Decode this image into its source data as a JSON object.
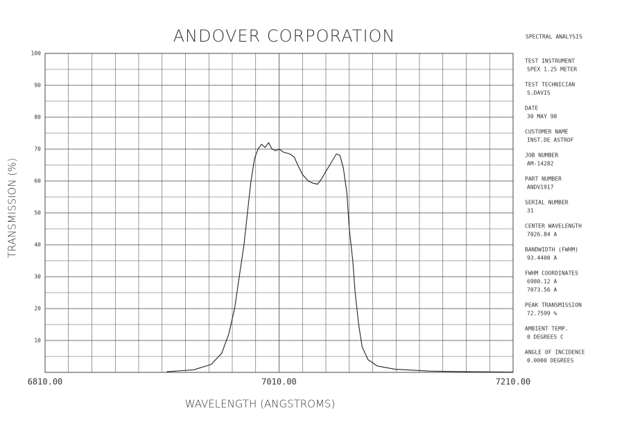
{
  "chart_data": {
    "type": "line",
    "title": "ANDOVER CORPORATION",
    "x_label": "WAVELENGTH (ANGSTROMS)",
    "y_label": "TRANSMISSION (%)",
    "x": [
      6914,
      6937,
      6952,
      6961,
      6967,
      6972,
      6976,
      6980,
      6983,
      6986,
      6989,
      6992,
      6995,
      6998,
      7001,
      7004,
      7007,
      7010,
      7014,
      7019,
      7023,
      7026,
      7030,
      7035,
      7039,
      7043,
      7046,
      7050,
      7055,
      7059,
      7062,
      7065,
      7068,
      7070,
      7073,
      7075,
      7078,
      7081,
      7086,
      7094,
      7109,
      7139,
      7174,
      7210
    ],
    "values": [
      0.2,
      0.8,
      2.5,
      6,
      12,
      20,
      30,
      40,
      50,
      60,
      67,
      70,
      71.5,
      70.5,
      72,
      70,
      69.5,
      70,
      69,
      68.5,
      67.5,
      65,
      62,
      60,
      59.3,
      59,
      60.5,
      63,
      66,
      68.5,
      68,
      64,
      56,
      45,
      35,
      25,
      15,
      8,
      4,
      2,
      1,
      0.4,
      0.2,
      0.1
    ],
    "color": "#222222",
    "xlim": [
      6810,
      7210
    ],
    "ylim": [
      0,
      100
    ],
    "xticks": [
      {
        "value": 6810,
        "label": "6810.00"
      },
      {
        "value": 7010,
        "label": "7010.00"
      },
      {
        "value": 7210,
        "label": "7210.00"
      }
    ],
    "yticks": [
      10,
      20,
      30,
      40,
      50,
      60,
      70,
      80,
      90,
      100
    ],
    "grid": true
  },
  "panel": {
    "title": "SPECTRAL ANALYSIS",
    "fields": [
      {
        "label": "TEST INSTRUMENT",
        "values": [
          "SPEX 1.25 METER"
        ]
      },
      {
        "label": "TEST TECHNICIAN",
        "values": [
          "S.DAVIS"
        ]
      },
      {
        "label": "DATE",
        "values": [
          "30 MAY 98"
        ]
      },
      {
        "label": "CUSTOMER NAME",
        "values": [
          "INST.DE ASTROF"
        ]
      },
      {
        "label": "JOB NUMBER",
        "values": [
          "AM-14282"
        ]
      },
      {
        "label": "PART NUMBER",
        "values": [
          "ANDV1917"
        ]
      },
      {
        "label": "SERIAL NUMBER",
        "values": [
          "31"
        ]
      },
      {
        "label": "CENTER WAVELENGTH",
        "values": [
          "7026.84 A"
        ]
      },
      {
        "label": "BANDWIDTH (FWHM)",
        "values": [
          "93.4400 A"
        ]
      },
      {
        "label": "FWHM COORDINATES",
        "values": [
          "6980.12 A",
          "7073.56 A"
        ]
      },
      {
        "label": "PEAK TRANSMISSION",
        "values": [
          "72.7599 %"
        ]
      },
      {
        "label": "AMBIENT TEMP.",
        "values": [
          "0 DEGREES C"
        ]
      },
      {
        "label": "ANGLE OF INCIDENCE",
        "values": [
          "0.0000 DEGREES"
        ]
      }
    ]
  }
}
